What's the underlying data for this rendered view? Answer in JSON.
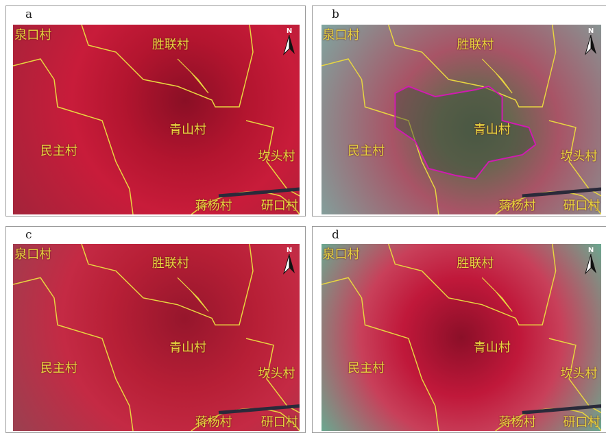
{
  "north": "N",
  "villages": [
    "泉口村",
    "胜联村",
    "青山村",
    "民主村",
    "坎头村",
    "蒋杨村",
    "研口村"
  ],
  "panels": [
    {
      "label": "a"
    },
    {
      "label": "b"
    },
    {
      "label": "c"
    },
    {
      "label": "d"
    }
  ]
}
